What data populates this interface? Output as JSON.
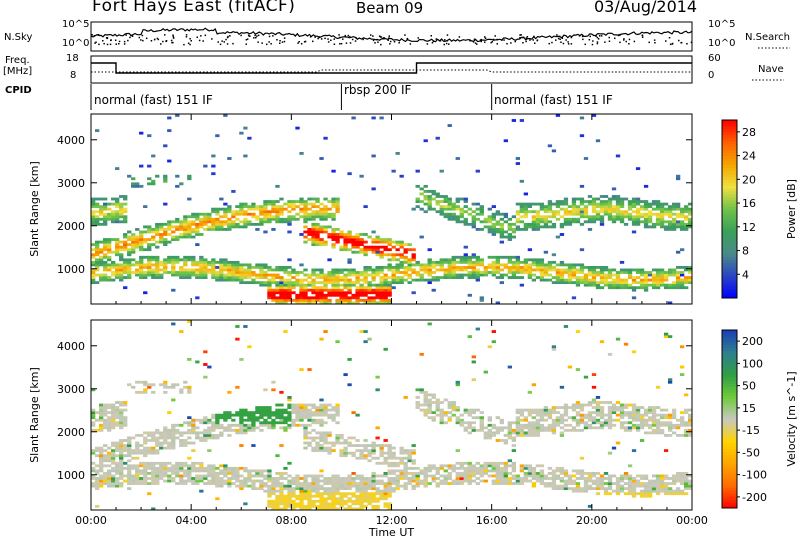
{
  "header": {
    "station": "Fort Hays East (fitACF)",
    "beam": "Beam 09",
    "date": "03/Aug/2014"
  },
  "left_labels": {
    "nsky": "N.Sky",
    "freq": "Freq.",
    "freq_unit": "[MHz]",
    "cpid": "CPID"
  },
  "right_labels": {
    "nsearch": "N.Search",
    "nave": "Nave"
  },
  "top_axes": {
    "noise_ticks": [
      "10^5",
      "10^0"
    ],
    "freq_ticks": [
      "18",
      "8"
    ],
    "nave_ticks": [
      "60",
      "0"
    ]
  },
  "cpid_segments": [
    {
      "label": "normal (fast) 151 IF",
      "start_h": 0,
      "end_h": 10
    },
    {
      "label": "rbsp 200 IF",
      "start_h": 10,
      "end_h": 16
    },
    {
      "label": "normal (fast) 151 IF",
      "start_h": 16,
      "end_h": 24
    }
  ],
  "colors": {
    "power_scale": [
      "#0000ff",
      "#2a44c4",
      "#4b8a8a",
      "#3aa05a",
      "#6ec24a",
      "#f0e040",
      "#f5a500",
      "#ff6000",
      "#ff0000"
    ],
    "velocity_scale": [
      "#ff0000",
      "#ff6a00",
      "#ffa500",
      "#ffd400",
      "#c8c8c0",
      "#6ecb3a",
      "#2f9e44",
      "#2f7f8f",
      "#1b3fb5"
    ]
  },
  "chart_data": [
    {
      "type": "heatmap",
      "xlabel": "",
      "ylabel": "Slant Range [km]",
      "x_ticks": [
        "00:00",
        "04:00",
        "08:00",
        "12:00",
        "16:00",
        "20:00",
        "00:00"
      ],
      "y_ticks": [
        "1000",
        "2000",
        "3000",
        "4000"
      ],
      "xlim": [
        0,
        24
      ],
      "ylim": [
        180,
        4600
      ],
      "colorbar": {
        "label": "Power [dB]",
        "ticks": [
          "4",
          "8",
          "12",
          "16",
          "20",
          "24",
          "28"
        ],
        "range": [
          0,
          30
        ]
      }
    },
    {
      "type": "heatmap",
      "xlabel": "Time UT",
      "ylabel": "Slant Range [km]",
      "x_ticks": [
        "00:00",
        "04:00",
        "08:00",
        "12:00",
        "16:00",
        "20:00",
        "00:00"
      ],
      "y_ticks": [
        "1000",
        "2000",
        "3000",
        "4000"
      ],
      "xlim": [
        0,
        24
      ],
      "ylim": [
        180,
        4600
      ],
      "colorbar": {
        "label": "Velocity [m s^-1]",
        "ticks": [
          "200",
          "100",
          "50",
          "15",
          "-15",
          "-50",
          "-100",
          "-200"
        ],
        "range": [
          -250,
          250
        ]
      }
    }
  ]
}
